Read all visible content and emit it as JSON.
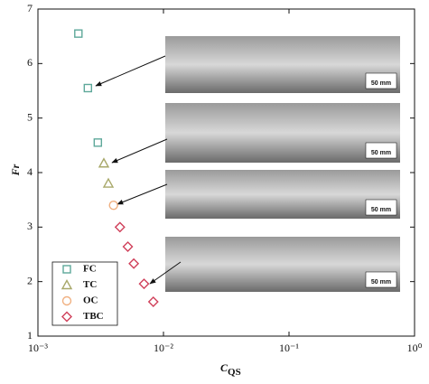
{
  "chart_data": {
    "type": "scatter",
    "x_label": "C",
    "x_label_sub": "QS",
    "y_label": "Fr",
    "xlim": [
      0.001,
      1
    ],
    "ylim": [
      1,
      7
    ],
    "xscale": "log",
    "xticks": [
      {
        "value": 0.001,
        "label": "10⁻³"
      },
      {
        "value": 0.01,
        "label": "10⁻²"
      },
      {
        "value": 0.1,
        "label": "10⁻¹"
      },
      {
        "value": 1,
        "label": "10⁰"
      }
    ],
    "yticks": [
      1,
      2,
      3,
      4,
      5,
      6,
      7
    ],
    "legend": "lower left",
    "scale_bar_label": "50 mm",
    "series": [
      {
        "name": "FC",
        "color": "#5ea89a",
        "marker": "square",
        "x": [
          0.0021,
          0.0025,
          0.003
        ],
        "values": [
          6.55,
          5.55,
          4.55
        ]
      },
      {
        "name": "TC",
        "color": "#a8a86a",
        "marker": "triangle",
        "x": [
          0.00335,
          0.00364
        ],
        "values": [
          4.17,
          3.8
        ]
      },
      {
        "name": "OC",
        "color": "#f0b080",
        "marker": "circle",
        "x": [
          0.004
        ],
        "values": [
          3.4
        ]
      },
      {
        "name": "TBC",
        "color": "#d0405a",
        "marker": "diamond",
        "x": [
          0.0045,
          0.0052,
          0.0058,
          0.007,
          0.0083
        ],
        "values": [
          3.0,
          2.64,
          2.33,
          1.96,
          1.63
        ]
      }
    ]
  }
}
